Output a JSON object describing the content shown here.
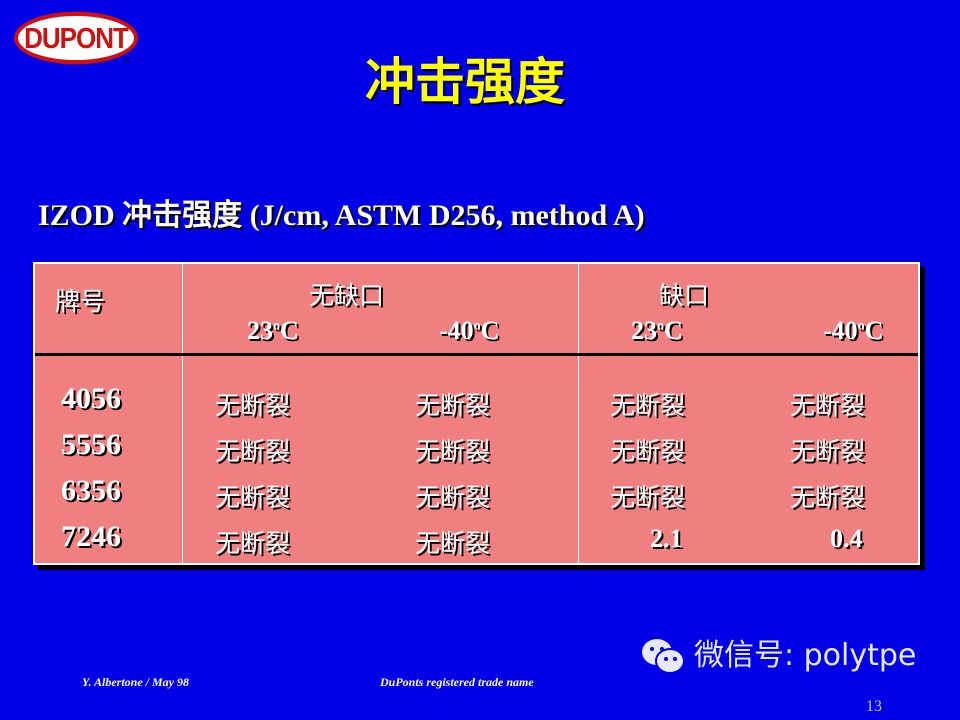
{
  "logo": {
    "text": "DUPONT",
    "registered": "®"
  },
  "title": "冲击强度",
  "subtitle": "IZOD 冲击强度 (J/cm, ASTM D256, method A)",
  "table": {
    "header": {
      "grade": "牌号",
      "unnotched": "无缺口",
      "notched": "缺口",
      "temp1": "23",
      "temp2": "-40",
      "deg": "o",
      "unit": "C"
    },
    "rows": [
      {
        "grade": "4056",
        "values": [
          "无断裂",
          "无断裂",
          "无断裂",
          "无断裂"
        ]
      },
      {
        "grade": "5556",
        "values": [
          "无断裂",
          "无断裂",
          "无断裂",
          "无断裂"
        ]
      },
      {
        "grade": "6356",
        "values": [
          "无断裂",
          "无断裂",
          "无断裂",
          "无断裂"
        ]
      },
      {
        "grade": "7246",
        "values": [
          "无断裂",
          "无断裂",
          "2.1",
          "0.4"
        ]
      }
    ]
  },
  "footer": {
    "author": "Y. Albertone / May 98",
    "note": "DuPonts registered trade name",
    "page": "13"
  },
  "watermark": {
    "text": "微信号: polytpe",
    "icon": "wechat-icon"
  },
  "colors": {
    "background": "#0000e6",
    "title": "#ffff00",
    "table": "#f08080"
  }
}
